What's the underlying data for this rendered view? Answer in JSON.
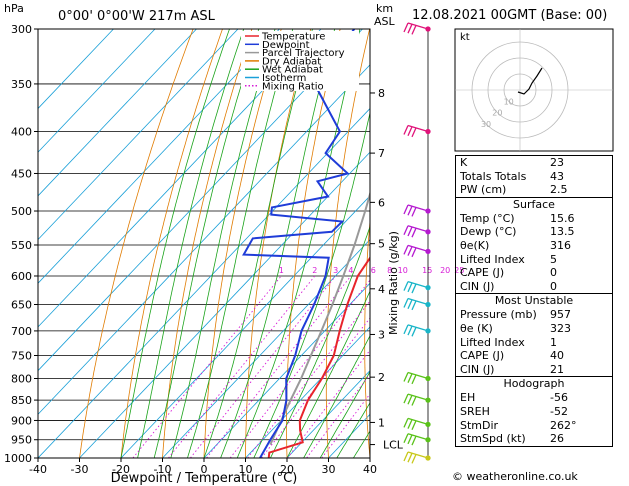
{
  "header": {
    "pressure_unit": "hPa",
    "location": "0°00' 0°00'W 217m ASL",
    "height_unit_top": "km",
    "height_unit_bottom": "ASL",
    "datetime": "12.08.2021 00GMT (Base: 00)",
    "credit": "© weatheronline.co.uk"
  },
  "legend": {
    "items": [
      {
        "label": "Temperature",
        "color": "#e8242b",
        "style": "solid"
      },
      {
        "label": "Dewpoint",
        "color": "#1f3cd8",
        "style": "solid"
      },
      {
        "label": "Parcel Trajectory",
        "color": "#999999",
        "style": "solid"
      },
      {
        "label": "Dry Adiabat",
        "color": "#e07b00",
        "style": "solid"
      },
      {
        "label": "Wet Adiabat",
        "color": "#1aa31a",
        "style": "solid"
      },
      {
        "label": "Isotherm",
        "color": "#1aa0d8",
        "style": "solid"
      },
      {
        "label": "Mixing Ratio",
        "color": "#d61ad6",
        "style": "dotted"
      }
    ]
  },
  "chart_data": {
    "type": "skew-t log-p",
    "xlabel": "Dewpoint / Temperature (°C)",
    "ylabel_right": "Mixing Ratio (g/kg)",
    "x_ticks": [
      "-40",
      "-30",
      "-20",
      "-10",
      "0",
      "10",
      "20",
      "30",
      "40"
    ],
    "xlim": [
      -40,
      40
    ],
    "pressure_ticks": [
      "300",
      "350",
      "400",
      "450",
      "500",
      "550",
      "600",
      "650",
      "700",
      "750",
      "800",
      "850",
      "900",
      "950",
      "1000"
    ],
    "ylim_hpa": [
      1000,
      300
    ],
    "height_ticks_km": [
      {
        "label": "8",
        "p": 359
      },
      {
        "label": "7",
        "p": 425
      },
      {
        "label": "6",
        "p": 488
      },
      {
        "label": "5",
        "p": 548
      },
      {
        "label": "4",
        "p": 622
      },
      {
        "label": "3",
        "p": 707
      },
      {
        "label": "2",
        "p": 797
      },
      {
        "label": "1",
        "p": 905
      }
    ],
    "lcl": {
      "label": "LCL",
      "p": 963
    },
    "mixing_ratio_labels": [
      "1",
      "2",
      "3",
      "4",
      "6",
      "8",
      "10",
      "15",
      "20",
      "25"
    ],
    "temperature": [
      {
        "p": 1000,
        "t": 15.6
      },
      {
        "p": 985,
        "t": 14.5
      },
      {
        "p": 957,
        "t": 20.2
      },
      {
        "p": 925,
        "t": 16.8
      },
      {
        "p": 900,
        "t": 14.5
      },
      {
        "p": 850,
        "t": 11.8
      },
      {
        "p": 800,
        "t": 10.2
      },
      {
        "p": 750,
        "t": 7.8
      },
      {
        "p": 700,
        "t": 3.6
      },
      {
        "p": 650,
        "t": -0.6
      },
      {
        "p": 600,
        "t": -4.6
      },
      {
        "p": 570,
        "t": -5.8
      },
      {
        "p": 550,
        "t": -7.0
      },
      {
        "p": 525,
        "t": -10.2
      },
      {
        "p": 500,
        "t": -11.8
      },
      {
        "p": 480,
        "t": -14.4
      },
      {
        "p": 450,
        "t": -17.6
      },
      {
        "p": 400,
        "t": -24.6
      },
      {
        "p": 350,
        "t": -33.6
      },
      {
        "p": 300,
        "t": -42.8
      }
    ],
    "dewpoint": [
      {
        "p": 1000,
        "t": 13.5
      },
      {
        "p": 950,
        "t": 11.8
      },
      {
        "p": 900,
        "t": 10.3
      },
      {
        "p": 850,
        "t": 6.6
      },
      {
        "p": 800,
        "t": 1.6
      },
      {
        "p": 750,
        "t": -1.5
      },
      {
        "p": 700,
        "t": -5.6
      },
      {
        "p": 650,
        "t": -8.6
      },
      {
        "p": 600,
        "t": -12.4
      },
      {
        "p": 570,
        "t": -15.8
      },
      {
        "p": 565,
        "t": -37.0
      },
      {
        "p": 540,
        "t": -38.5
      },
      {
        "p": 530,
        "t": -21.0
      },
      {
        "p": 515,
        "t": -20.8
      },
      {
        "p": 505,
        "t": -39.5
      },
      {
        "p": 495,
        "t": -41.0
      },
      {
        "p": 480,
        "t": -30.0
      },
      {
        "p": 460,
        "t": -36.0
      },
      {
        "p": 450,
        "t": -30.5
      },
      {
        "p": 425,
        "t": -40.5
      },
      {
        "p": 400,
        "t": -42.0
      },
      {
        "p": 350,
        "t": -59.0
      },
      {
        "p": 300,
        "t": -62.0
      }
    ],
    "parcel": [
      {
        "p": 963,
        "t": 12.9
      },
      {
        "p": 900,
        "t": 10.0
      },
      {
        "p": 850,
        "t": 7.6
      },
      {
        "p": 800,
        "t": 5.2
      },
      {
        "p": 750,
        "t": 2.3
      },
      {
        "p": 700,
        "t": -0.8
      },
      {
        "p": 650,
        "t": -4.2
      },
      {
        "p": 600,
        "t": -8.1
      },
      {
        "p": 550,
        "t": -12.5
      },
      {
        "p": 500,
        "t": -17.7
      },
      {
        "p": 450,
        "t": -23.7
      },
      {
        "p": 400,
        "t": -30.9
      },
      {
        "p": 350,
        "t": -39.4
      },
      {
        "p": 300,
        "t": -49.8
      }
    ],
    "winds": [
      {
        "p": 300,
        "color": "#e0147a"
      },
      {
        "p": 400,
        "color": "#e0147a"
      },
      {
        "p": 500,
        "color": "#b51ad0"
      },
      {
        "p": 530,
        "color": "#b51ad0"
      },
      {
        "p": 560,
        "color": "#b51ad0"
      },
      {
        "p": 620,
        "color": "#1ab5c8"
      },
      {
        "p": 650,
        "color": "#1ab5c8"
      },
      {
        "p": 700,
        "color": "#1ab5c8"
      },
      {
        "p": 800,
        "color": "#5ac21a"
      },
      {
        "p": 850,
        "color": "#5ac21a"
      },
      {
        "p": 910,
        "color": "#5ac21a"
      },
      {
        "p": 950,
        "color": "#5ac21a"
      },
      {
        "p": 1000,
        "color": "#c8c81a"
      }
    ],
    "grid": true
  },
  "hodograph": {
    "unit_label": "kt",
    "ring_labels": [
      "10",
      "20",
      "30"
    ]
  },
  "indices": {
    "top": [
      {
        "label": "K",
        "value": "23"
      },
      {
        "label": "Totals Totals",
        "value": "43"
      },
      {
        "label": "PW (cm)",
        "value": "2.5"
      }
    ],
    "surface": {
      "title": "Surface",
      "rows": [
        {
          "label": "Temp (°C)",
          "value": "15.6"
        },
        {
          "label": "Dewp (°C)",
          "value": "13.5"
        },
        {
          "label": "θe(K)",
          "value": "316"
        },
        {
          "label": "Lifted Index",
          "value": "5"
        },
        {
          "label": "CAPE (J)",
          "value": "0"
        },
        {
          "label": "CIN (J)",
          "value": "0"
        }
      ]
    },
    "unstable": {
      "title": "Most Unstable",
      "rows": [
        {
          "label": "Pressure (mb)",
          "value": "957"
        },
        {
          "label": "θe (K)",
          "value": "323"
        },
        {
          "label": "Lifted Index",
          "value": "1"
        },
        {
          "label": "CAPE (J)",
          "value": "40"
        },
        {
          "label": "CIN (J)",
          "value": "21"
        }
      ]
    },
    "hodo": {
      "title": "Hodograph",
      "rows": [
        {
          "label": "EH",
          "value": "-56"
        },
        {
          "label": "SREH",
          "value": "-52"
        },
        {
          "label": "StmDir",
          "value": "262°"
        },
        {
          "label": "StmSpd (kt)",
          "value": "26"
        }
      ]
    }
  }
}
